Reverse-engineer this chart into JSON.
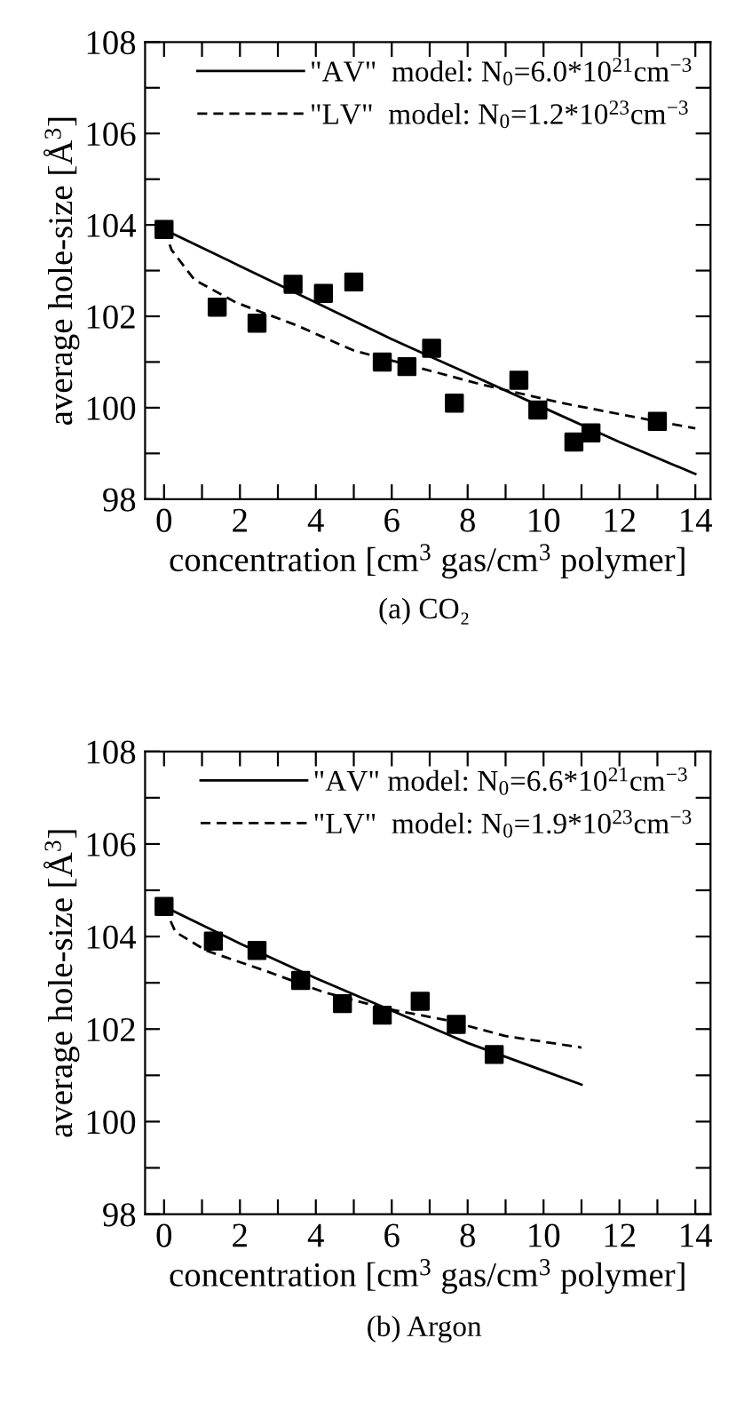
{
  "chart_data": [
    {
      "type": "scatter",
      "xlabel": "concentration [cm$^{3}$ gas/cm$^{3}$ polymer]",
      "ylabel": "average hole-size [Å$^{3}$]",
      "annotations": [
        "(a) CO₂"
      ],
      "xlim": [
        -0.5,
        14.4
      ],
      "ylim": [
        98,
        108
      ],
      "xticks": [
        0,
        {
          "value": 1,
          "label": null
        },
        2,
        {
          "value": 3,
          "label": null
        },
        4,
        {
          "value": 5,
          "label": null
        },
        6,
        {
          "value": 7,
          "label": null
        },
        8,
        {
          "value": 9,
          "label": null
        },
        10,
        {
          "value": 11,
          "label": null
        },
        12,
        {
          "value": 13,
          "label": null
        },
        14
      ],
      "yticks": [
        98,
        {
          "value": 99,
          "label": null
        },
        100,
        {
          "value": 101,
          "label": null
        },
        102,
        {
          "value": 103,
          "label": null
        },
        104,
        {
          "value": 105,
          "label": null
        },
        106,
        {
          "value": 107,
          "label": null
        },
        108
      ],
      "legend": "top right",
      "grid": false,
      "series": [
        {
          "marker": "square",
          "color": "#000000",
          "x": [
            0,
            1.4,
            2.45,
            3.4,
            4.2,
            5.0,
            5.75,
            6.4,
            7.05,
            7.65,
            9.35,
            9.85,
            10.8,
            11.25,
            13.0
          ],
          "values": [
            103.9,
            102.2,
            101.85,
            102.7,
            102.5,
            102.75,
            101.0,
            100.9,
            101.3,
            100.1,
            100.6,
            99.95,
            99.25,
            99.45,
            99.7
          ]
        },
        {
          "type": "line",
          "name": "\"AV\"  model: N$_{0}$=6.0*10$^{21}$cm$^{−3}$",
          "color": "#000000",
          "line_style": "solid",
          "x": [
            0,
            2,
            4,
            6,
            8,
            10,
            12,
            14
          ],
          "values": [
            103.9,
            103.1,
            102.3,
            101.5,
            100.75,
            100.0,
            99.25,
            98.55
          ]
        },
        {
          "type": "line",
          "name": "\"LV\"  model: N$_{0}$=1.2*10$^{23}$cm$^{−3}$",
          "color": "#000000",
          "line_style": "dashed",
          "x": [
            0,
            0.2,
            0.8,
            1.9,
            3.5,
            5.0,
            6.6,
            8.4,
            10.5,
            13.0,
            14
          ],
          "values": [
            103.9,
            103.45,
            102.8,
            102.3,
            101.8,
            101.25,
            100.9,
            100.5,
            100.1,
            99.7,
            99.55
          ]
        }
      ]
    },
    {
      "type": "scatter",
      "xlabel": "concentration [cm$^{3}$ gas/cm$^{3}$ polymer]",
      "ylabel": "average hole-size [Å$^{3}$]",
      "annotations": [
        "(b) Argon"
      ],
      "xlim": [
        -0.5,
        14.4
      ],
      "ylim": [
        98,
        108
      ],
      "xticks": [
        0,
        {
          "value": 1,
          "label": null
        },
        2,
        {
          "value": 3,
          "label": null
        },
        4,
        {
          "value": 5,
          "label": null
        },
        6,
        {
          "value": 7,
          "label": null
        },
        8,
        {
          "value": 9,
          "label": null
        },
        10,
        {
          "value": 11,
          "label": null
        },
        12,
        {
          "value": 13,
          "label": null
        },
        14
      ],
      "yticks": [
        98,
        {
          "value": 99,
          "label": null
        },
        100,
        {
          "value": 101,
          "label": null
        },
        102,
        {
          "value": 103,
          "label": null
        },
        104,
        {
          "value": 105,
          "label": null
        },
        106,
        {
          "value": 107,
          "label": null
        },
        108
      ],
      "legend": "top right",
      "grid": false,
      "series": [
        {
          "marker": "square",
          "color": "#000000",
          "x": [
            0,
            1.3,
            2.45,
            3.6,
            4.7,
            5.75,
            6.75,
            7.7,
            8.7
          ],
          "values": [
            104.65,
            103.9,
            103.7,
            103.05,
            102.55,
            102.3,
            102.6,
            102.1,
            101.45
          ]
        },
        {
          "type": "line",
          "name": "\"AV\" model: N$_{0}$=6.6*10$^{21}$cm$^{−3}$",
          "color": "#000000",
          "line_style": "solid",
          "x": [
            0,
            2,
            4,
            6,
            8,
            10,
            11
          ],
          "values": [
            104.65,
            103.85,
            103.1,
            102.4,
            101.7,
            101.1,
            100.8
          ]
        },
        {
          "type": "line",
          "name": "\"LV\"  model: N$_{0}$=1.9*10$^{23}$cm$^{−3}$",
          "color": "#000000",
          "line_style": "dashed",
          "x": [
            0,
            0.3,
            1.1,
            2.7,
            4.2,
            5.8,
            7.4,
            9.0,
            11
          ],
          "values": [
            104.65,
            104.1,
            103.7,
            103.25,
            102.8,
            102.45,
            102.2,
            101.85,
            101.6
          ]
        }
      ]
    }
  ]
}
